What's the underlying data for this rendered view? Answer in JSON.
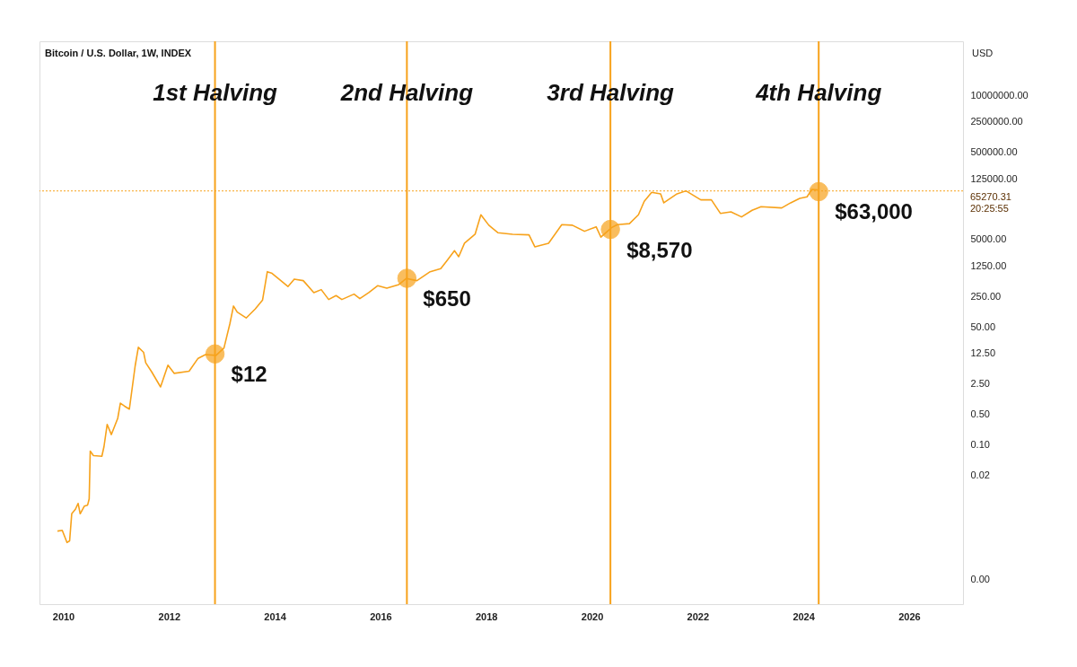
{
  "chart_data": {
    "type": "line",
    "title": "Bitcoin / U.S. Dollar, 1W, INDEX",
    "ylabel": "USD",
    "log": true,
    "grid": false,
    "xlim": [
      2009.55,
      2027.02
    ],
    "xticks": [
      2010,
      2012,
      2014,
      2016,
      2018,
      2020,
      2022,
      2024,
      2026
    ],
    "ylim": [
      2.2e-05,
      176000000
    ],
    "yticks": [
      {
        "value": 8e-05,
        "label": "0.00"
      },
      {
        "value": 0.02,
        "label": "0.02"
      },
      {
        "value": 0.1,
        "label": "0.10"
      },
      {
        "value": 0.5,
        "label": "0.50"
      },
      {
        "value": 2.5,
        "label": "2.50"
      },
      {
        "value": 12.5,
        "label": "12.50"
      },
      {
        "value": 50,
        "label": "50.00"
      },
      {
        "value": 250,
        "label": "250.00"
      },
      {
        "value": 1250,
        "label": "1250.00"
      },
      {
        "value": 5000,
        "label": "5000.00"
      },
      {
        "value": 125000,
        "label": "125000.00"
      },
      {
        "value": 500000,
        "label": "500000.00"
      },
      {
        "value": 2500000,
        "label": "2500000.00"
      },
      {
        "value": 10000000,
        "label": "10000000.00"
      }
    ],
    "series": [
      {
        "marker": "none",
        "line_style": "solid",
        "color": "#f7a21b",
        "x": [
          2009.89,
          2009.98,
          2010.07,
          2010.12,
          2010.16,
          2010.23,
          2010.28,
          2010.32,
          2010.4,
          2010.46,
          2010.49,
          2010.51,
          2010.57,
          2010.73,
          2010.77,
          2010.83,
          2010.91,
          2011.03,
          2011.08,
          2011.16,
          2011.25,
          2011.36,
          2011.42,
          2011.52,
          2011.56,
          2011.67,
          2011.84,
          2011.98,
          2012.1,
          2012.38,
          2012.55,
          2012.69,
          2012.89,
          2013.04,
          2013.15,
          2013.22,
          2013.29,
          2013.46,
          2013.63,
          2013.77,
          2013.86,
          2013.94,
          2014.08,
          2014.25,
          2014.37,
          2014.54,
          2014.74,
          2014.88,
          2015.02,
          2015.16,
          2015.27,
          2015.5,
          2015.61,
          2015.78,
          2015.95,
          2016.12,
          2016.35,
          2016.49,
          2016.69,
          2016.94,
          2017.14,
          2017.25,
          2017.4,
          2017.48,
          2017.59,
          2017.79,
          2017.9,
          2018.05,
          2018.22,
          2018.5,
          2018.81,
          2018.92,
          2019.18,
          2019.43,
          2019.63,
          2019.86,
          2020.08,
          2020.17,
          2020.37,
          2020.48,
          2020.71,
          2020.88,
          2020.99,
          2021.13,
          2021.3,
          2021.36,
          2021.61,
          2021.78,
          2022.06,
          2022.26,
          2022.43,
          2022.63,
          2022.83,
          2023.03,
          2023.2,
          2023.59,
          2023.76,
          2023.93,
          2024.07,
          2024.16,
          2024.27
        ],
        "values": [
          0.00104,
          0.00108,
          0.00057,
          0.00062,
          0.0026,
          0.0033,
          0.0045,
          0.0026,
          0.0039,
          0.0041,
          0.0057,
          0.071,
          0.056,
          0.054,
          0.09,
          0.29,
          0.17,
          0.4,
          0.89,
          0.76,
          0.65,
          6.4,
          17,
          13,
          7.5,
          4.7,
          2.1,
          6.6,
          4.3,
          4.8,
          9.5,
          11.6,
          11.1,
          16.4,
          58,
          150,
          109,
          80,
          128,
          206,
          920,
          855,
          622,
          420,
          622,
          574,
          305,
          357,
          212,
          261,
          212,
          282,
          222,
          305,
          440,
          387,
          468,
          643,
          574,
          920,
          1080,
          1600,
          2790,
          2030,
          4140,
          6640,
          18600,
          10700,
          7200,
          6640,
          6430,
          3420,
          4140,
          11000,
          10700,
          7770,
          9840,
          5690,
          9390,
          11000,
          11600,
          18600,
          37800,
          60700,
          56000,
          34900,
          56000,
          65500,
          40800,
          40800,
          20000,
          21700,
          16600,
          23500,
          28400,
          26600,
          34900,
          44200,
          47900,
          71000,
          68700
        ]
      },
      {
        "type": "scatter",
        "marker": "circle",
        "color": "#f7a21b",
        "x": [
          2012.87,
          2016.5,
          2020.35,
          2024.29
        ],
        "values": [
          12,
          650,
          8570,
          63000
        ],
        "value_labels": [
          "$12",
          "$650",
          "$8,570",
          "$63,000"
        ]
      }
    ],
    "ref_lines": [
      {
        "axis": "x",
        "value": 2012.87,
        "label": "1st Halving",
        "color": "#f7a21b",
        "line_style": "solid"
      },
      {
        "axis": "x",
        "value": 2016.5,
        "label": "2nd Halving",
        "color": "#f7a21b",
        "line_style": "solid"
      },
      {
        "axis": "x",
        "value": 2020.35,
        "label": "3rd Halving",
        "color": "#f7a21b",
        "line_style": "solid"
      },
      {
        "axis": "x",
        "value": 2024.29,
        "label": "4th Halving",
        "color": "#f7a21b",
        "line_style": "solid"
      },
      {
        "axis": "y",
        "value": 65270.31,
        "label": "65270.31\n20:25:55",
        "color": "#f7a21b",
        "line_style": "dotted"
      }
    ]
  }
}
